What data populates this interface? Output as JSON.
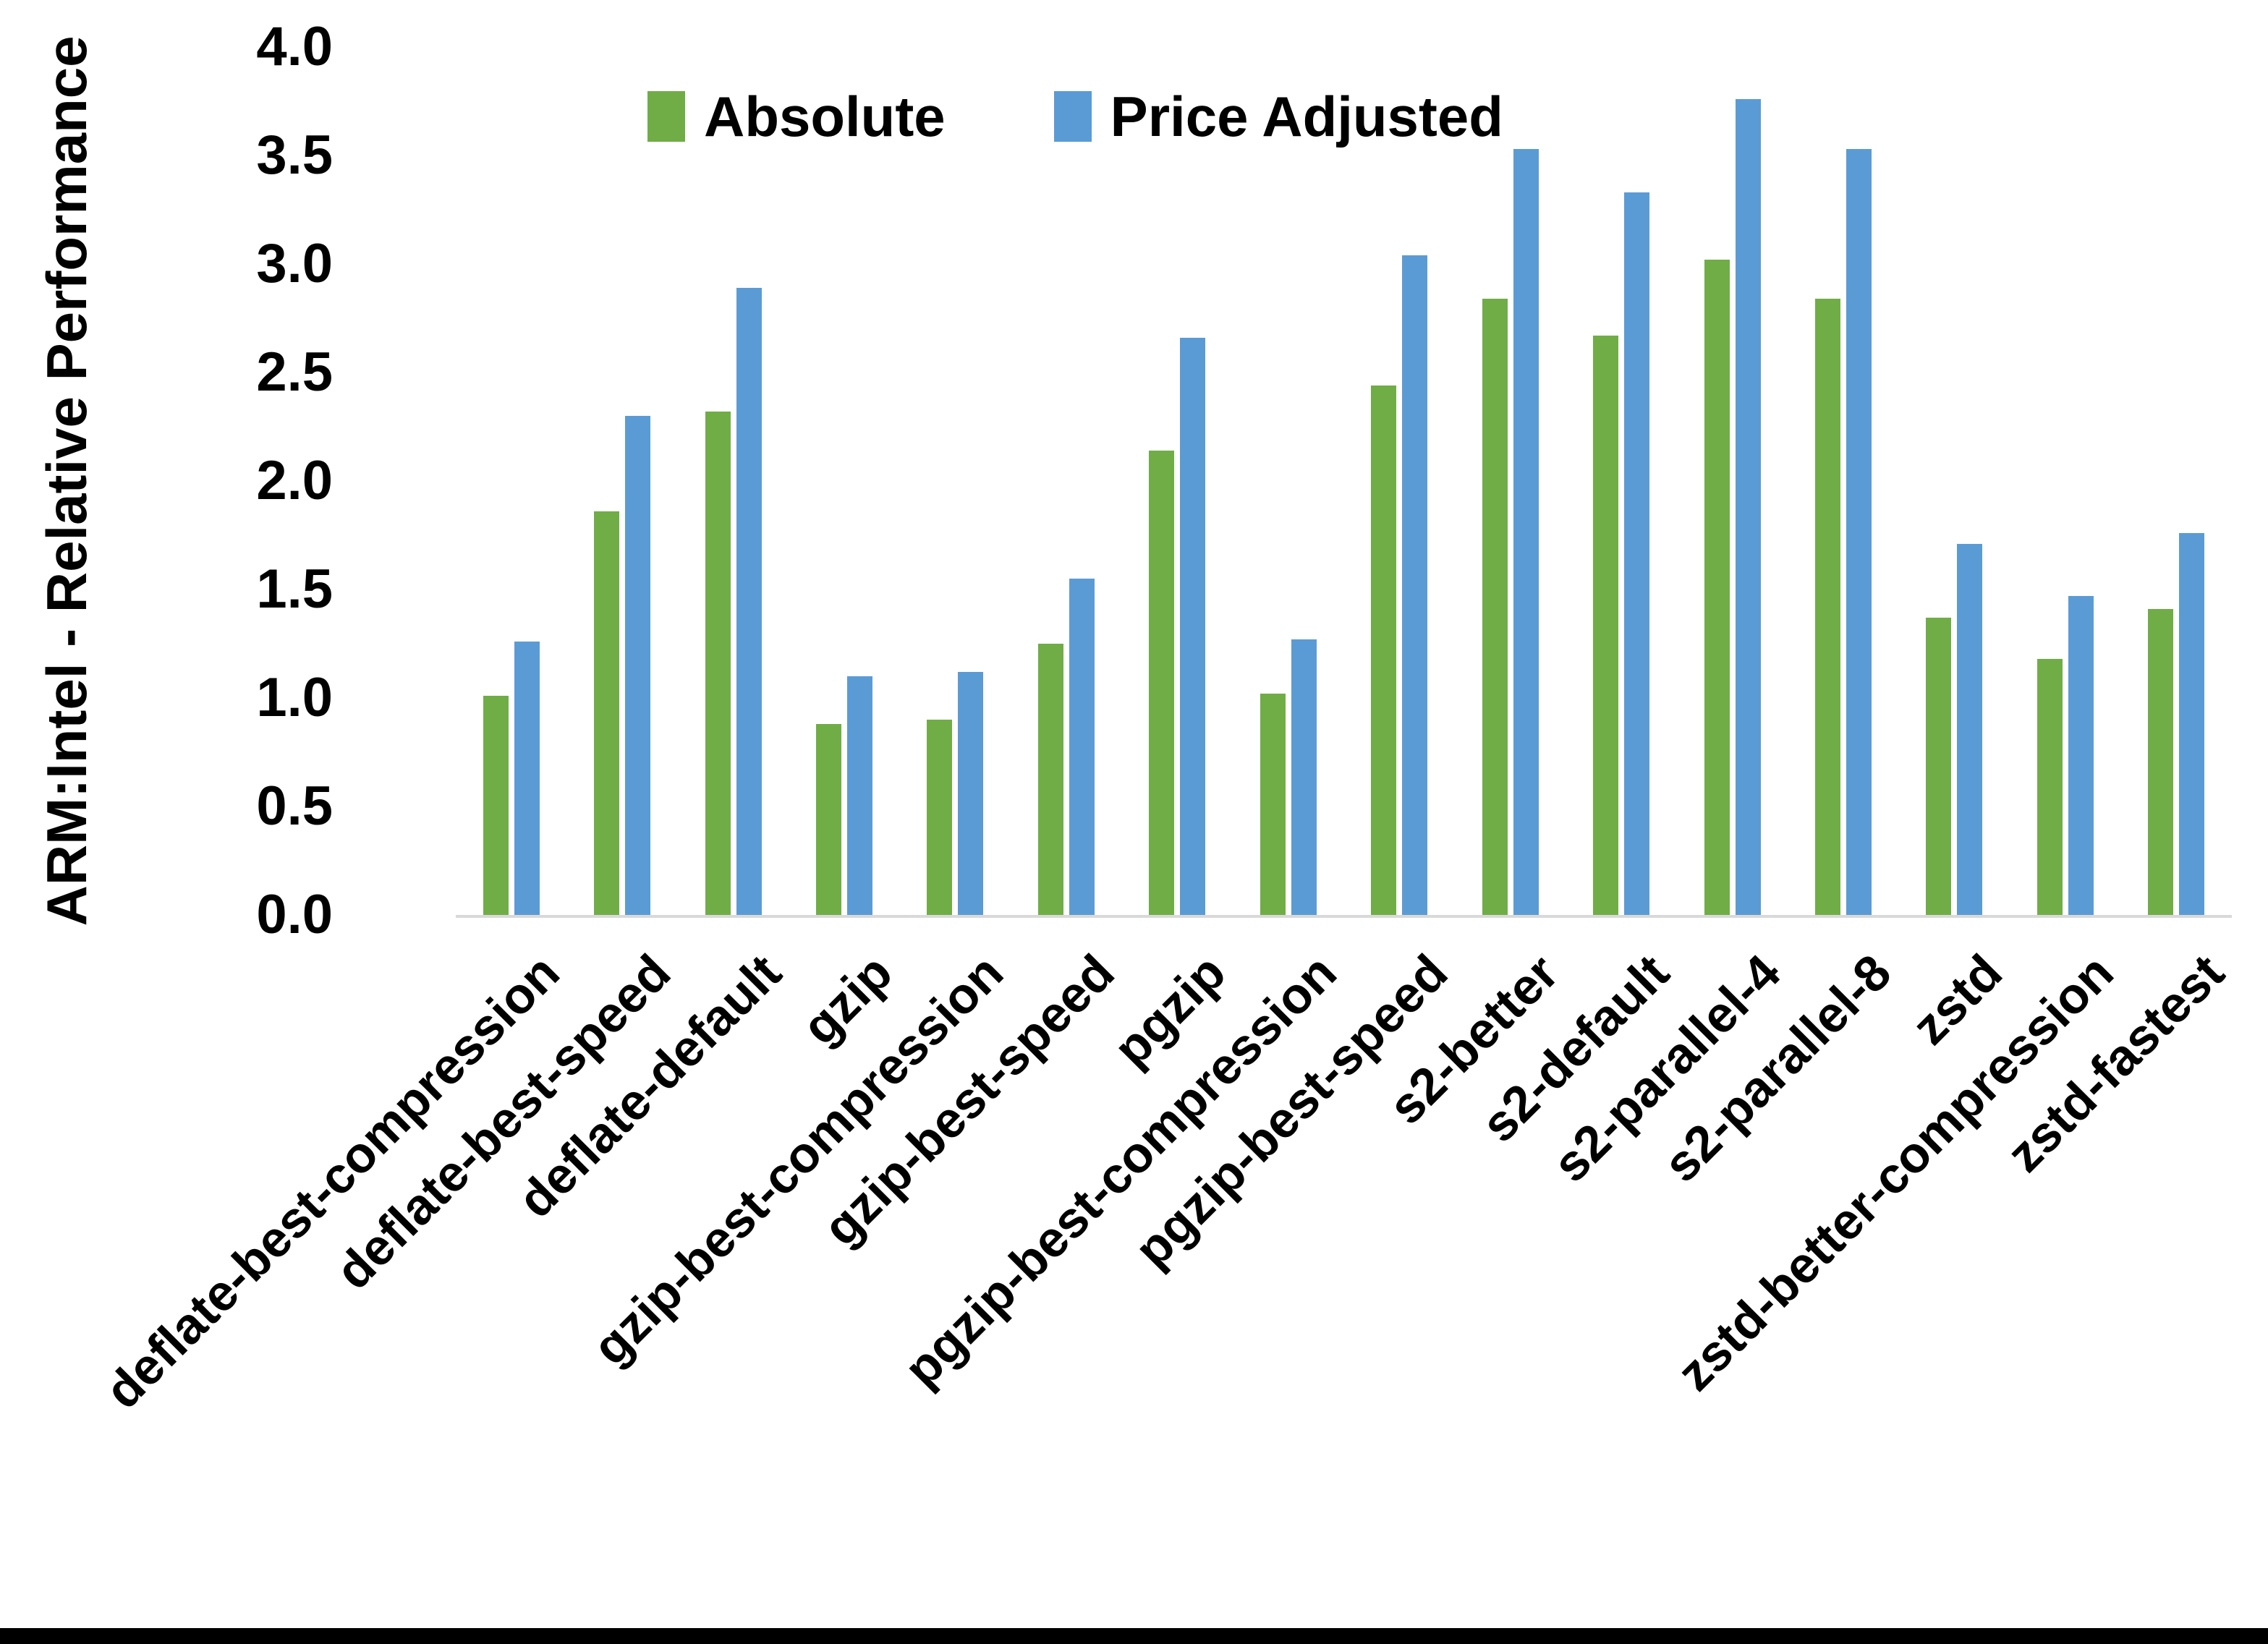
{
  "chart_data": {
    "type": "bar",
    "title": "",
    "ylabel": "ARM:Intel - Relative Performance",
    "xlabel": "",
    "ylim": [
      0.0,
      4.0
    ],
    "ytick_step": 0.5,
    "ytick_labels": [
      "4.0",
      "3.5",
      "3.0",
      "2.5",
      "2.0",
      "1.5",
      "1.0",
      "0.5",
      "0.0"
    ],
    "grid": false,
    "legend_position": "top-center",
    "categories": [
      "deflate-best-compression",
      "deflate-best-speed",
      "deflate-default",
      "gzip",
      "gzip-best-compression",
      "gzip-best-speed",
      "pgzip",
      "pgzip-best-compression",
      "pgzip-best-speed",
      "s2-better",
      "s2-default",
      "s2-parallel-4",
      "s2-parallel-8",
      "zstd",
      "zstd-better-compression",
      "zstd-fastest"
    ],
    "series": [
      {
        "name": "Absolute",
        "color": "#70AD47",
        "values": [
          1.01,
          1.86,
          2.32,
          0.88,
          0.9,
          1.25,
          2.14,
          1.02,
          2.44,
          2.84,
          2.67,
          3.02,
          2.84,
          1.37,
          1.18,
          1.41
        ]
      },
      {
        "name": "Price Adjusted",
        "color": "#5B9BD5",
        "values": [
          1.26,
          2.3,
          2.89,
          1.1,
          1.12,
          1.55,
          2.66,
          1.27,
          3.04,
          3.53,
          3.33,
          3.76,
          3.53,
          1.71,
          1.47,
          1.76
        ]
      }
    ]
  },
  "colors": {
    "background": "#FFFFFF",
    "axis_line": "#D9D9D9",
    "text": "#000000",
    "bottom_border": "#000000"
  }
}
